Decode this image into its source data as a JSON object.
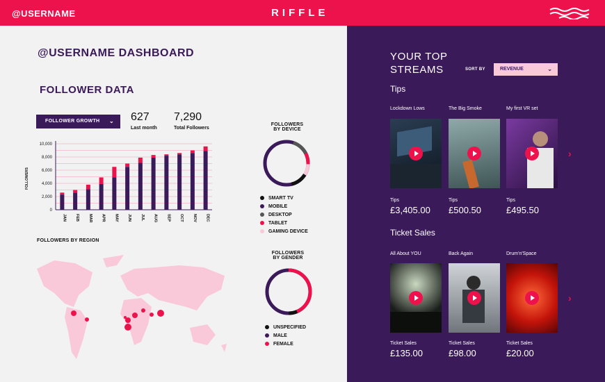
{
  "header": {
    "username": "@USERNAME",
    "logo": "RIFFLE",
    "menu_icon": "wave-menu-icon"
  },
  "dashboard": {
    "title": "@USERNAME DASHBOARD",
    "section_title": "FOLLOWER DATA",
    "dropdown_label": "FOLLOWER GROWTH",
    "stats": [
      {
        "value": "627",
        "label": "Last month"
      },
      {
        "value": "7,290",
        "label": "Total Followers"
      }
    ],
    "region_title": "FOLLOWERS BY REGION",
    "device_title_1": "FOLLOWERS",
    "device_title_2": "BY DEVICE",
    "device_legend": [
      {
        "label": "SMART TV",
        "color": "#111111"
      },
      {
        "label": "MOBILE",
        "color": "#3b1a5a"
      },
      {
        "label": "DESKTOP",
        "color": "#555555"
      },
      {
        "label": "TABLET",
        "color": "#ee124c"
      },
      {
        "label": "GAMING DEVICE",
        "color": "#f9c9d9"
      }
    ],
    "gender_title_1": "FOLLOWERS",
    "gender_title_2": "BY GENDER",
    "gender_legend": [
      {
        "label": "UNSPECIFIED",
        "color": "#111111"
      },
      {
        "label": "MALE",
        "color": "#3b1a5a"
      },
      {
        "label": "FEMALE",
        "color": "#ee124c"
      }
    ]
  },
  "chart_data": {
    "type": "bar",
    "title": "",
    "ylabel": "FOLLOWERS",
    "xlabel": "",
    "ylim": [
      0,
      10000
    ],
    "yticks": [
      "0",
      "2,000",
      "4,000",
      "6,000",
      "8,000",
      "10,000"
    ],
    "categories": [
      "JAN",
      "FEB",
      "MAR",
      "APR",
      "MAY",
      "JUN",
      "JUL",
      "AUG",
      "SEP",
      "OCT",
      "NOV",
      "DEC"
    ],
    "series": [
      {
        "name": "base",
        "color": "#3b1a5a",
        "values": [
          2300,
          2600,
          3100,
          3900,
          4900,
          6500,
          7100,
          7900,
          8200,
          8400,
          8600,
          8900
        ]
      },
      {
        "name": "growth",
        "color": "#ee124c",
        "values": [
          300,
          400,
          700,
          1000,
          1600,
          500,
          800,
          400,
          200,
          200,
          400,
          700
        ]
      }
    ]
  },
  "streams": {
    "title_line1": "YOUR TOP",
    "title_line2": "STREAMS",
    "sort_label": "SORT BY",
    "sort_value": "REVENUE",
    "tips": {
      "title": "Tips",
      "items": [
        {
          "name": "Lockdown Lows",
          "label": "Tips",
          "price": "£3,405.00"
        },
        {
          "name": "The Big Smoke",
          "label": "Tips",
          "price": "£500.50"
        },
        {
          "name": "My first VR set",
          "label": "Tips",
          "price": "£495.50"
        }
      ]
    },
    "tickets": {
      "title": "Ticket Sales",
      "items": [
        {
          "name": "All About YOU",
          "label": "Ticket Sales",
          "price": "£135.00"
        },
        {
          "name": "Back Again",
          "label": "Ticket Sales",
          "price": "£98.00"
        },
        {
          "name": "Drum'n'Space",
          "label": "Ticket Sales",
          "price": "£20.00"
        }
      ]
    }
  }
}
